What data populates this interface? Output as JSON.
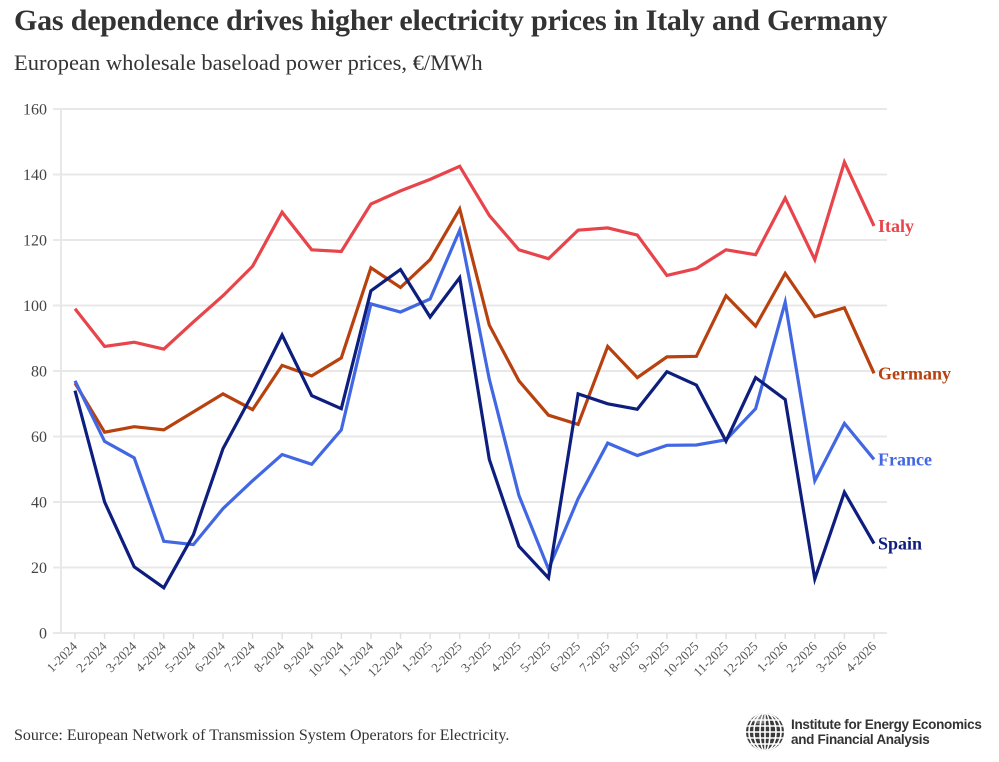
{
  "header": {
    "title": "Gas dependence drives higher electricity prices in Italy and Germany",
    "subtitle": "European wholesale baseload power prices, €/MWh"
  },
  "footer": {
    "source": "Source: European Network of Transmission System Operators for Electricity.",
    "logo_line1": "Institute for Energy Economics",
    "logo_line2": "and Financial Analysis",
    "logo_icon": "globe-icon"
  },
  "chart_data": {
    "type": "line",
    "title": "Gas dependence drives higher electricity prices in Italy and Germany",
    "subtitle": "European wholesale baseload power prices, €/MWh",
    "xlabel": "",
    "ylabel": "€/MWh",
    "ylim": [
      0,
      160
    ],
    "yticks": [
      0,
      20,
      40,
      60,
      80,
      100,
      120,
      140,
      160
    ],
    "grid": true,
    "legend": "inline-right",
    "x": [
      "1-2024",
      "2-2024",
      "3-2024",
      "4-2024",
      "5-2024",
      "6-2024",
      "7-2024",
      "8-2024",
      "9-2024",
      "10-2024",
      "11-2024",
      "12-2024",
      "1-2025",
      "2-2025",
      "3-2025",
      "4-2025",
      "5-2025",
      "6-2025",
      "7-2025",
      "8-2025",
      "9-2025",
      "10-2025",
      "11-2025",
      "12-2025",
      "1-2026",
      "2-2026",
      "3-2026",
      "4-2026"
    ],
    "series": [
      {
        "name": "Italy",
        "color": "#E8444B",
        "values": [
          99,
          87.5,
          88.8,
          86.7,
          95,
          103,
          112,
          128.5,
          117,
          116.5,
          131,
          135,
          138.5,
          142.5,
          127.5,
          117,
          114.3,
          123,
          123.7,
          121.5,
          109.2,
          111.3,
          117,
          115.5,
          132.8,
          114,
          143.8,
          124.3
        ]
      },
      {
        "name": "Germany",
        "color": "#B8420F",
        "values": [
          76.3,
          61.3,
          63,
          62,
          67.5,
          73,
          68.2,
          81.7,
          78.5,
          84,
          111.5,
          105.5,
          114,
          129.5,
          94,
          77,
          66.5,
          63.7,
          87.5,
          78,
          84.3,
          84.5,
          103,
          93.7,
          109.8,
          96.6,
          99.3,
          79.3
        ]
      },
      {
        "name": "France",
        "color": "#4267E3",
        "values": [
          77,
          58.5,
          53.5,
          28,
          27,
          38,
          46.5,
          54.5,
          51.5,
          62,
          100.5,
          98,
          102,
          123,
          77.5,
          42,
          19.5,
          41,
          58,
          54.2,
          57.3,
          57.4,
          59,
          68.5,
          101,
          46.5,
          64,
          53
        ]
      },
      {
        "name": "Spain",
        "color": "#0E1E7E",
        "values": [
          74,
          40,
          20.2,
          13.8,
          30,
          56.3,
          73,
          91,
          72.5,
          68.5,
          104.5,
          111,
          96.5,
          108.5,
          53,
          26.5,
          16.8,
          73,
          70,
          68.3,
          79.8,
          75.7,
          58.6,
          78,
          71.3,
          16.5,
          43,
          27.3
        ]
      }
    ]
  }
}
